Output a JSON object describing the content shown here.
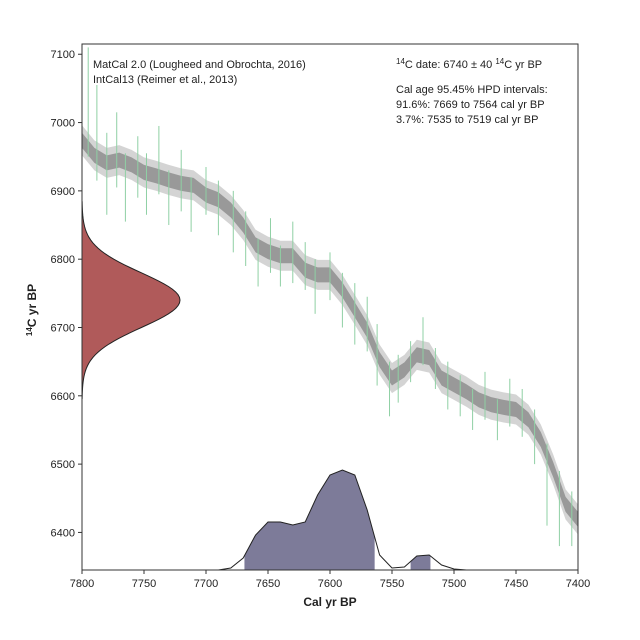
{
  "chart_data": {
    "type": "calibration",
    "xlabel": "Cal yr BP",
    "ylabel": {
      "sup": "14",
      "text": "C yr BP"
    },
    "xlim": [
      7800,
      7400
    ],
    "ylim": [
      6345,
      7115
    ],
    "xticks": [
      7800,
      7750,
      7700,
      7650,
      7600,
      7550,
      7500,
      7450,
      7400
    ],
    "yticks": [
      6400,
      6500,
      6600,
      6700,
      6800,
      6900,
      7000,
      7100
    ],
    "legend_lines": [
      "MatCal 2.0 (Lougheed and Obrochta, 2016)",
      "IntCal13 (Reimer et al., 2013)"
    ],
    "date_label": [
      "14",
      "C date: 6740 ± 40 ",
      "14",
      "C yr BP"
    ],
    "hpd_title": "Cal age 95.45% HPD intervals:",
    "hpd_lines": [
      "91.6%: 7669 to 7564 cal yr BP",
      "3.7%: 7535 to 7519 cal yr BP"
    ],
    "hpd_intervals": [
      [
        7669,
        7564
      ],
      [
        7535,
        7519
      ]
    ],
    "c14_date": {
      "mean": 6740,
      "error": 40,
      "color": "#b05a5a"
    },
    "curve": {
      "color": "#999999",
      "band_color": "#d4d4d4",
      "sigma": 11,
      "x": [
        7800,
        7790,
        7780,
        7770,
        7760,
        7750,
        7740,
        7730,
        7720,
        7710,
        7700,
        7690,
        7680,
        7670,
        7660,
        7650,
        7640,
        7630,
        7620,
        7610,
        7600,
        7590,
        7580,
        7570,
        7560,
        7550,
        7540,
        7530,
        7520,
        7510,
        7500,
        7490,
        7480,
        7470,
        7460,
        7450,
        7440,
        7430,
        7420,
        7410,
        7400
      ],
      "values": [
        6974,
        6952,
        6941,
        6945,
        6938,
        6927,
        6922,
        6916,
        6911,
        6908,
        6894,
        6887,
        6872,
        6850,
        6821,
        6811,
        6805,
        6805,
        6784,
        6777,
        6777,
        6755,
        6726,
        6696,
        6653,
        6626,
        6638,
        6660,
        6656,
        6626,
        6616,
        6606,
        6594,
        6587,
        6583,
        6580,
        6565,
        6536,
        6492,
        6441,
        6419
      ]
    },
    "measurements": {
      "color": "#8fd0a4",
      "x": [
        7795,
        7788,
        7780,
        7772,
        7765,
        7755,
        7748,
        7738,
        7730,
        7720,
        7712,
        7700,
        7690,
        7678,
        7668,
        7658,
        7648,
        7640,
        7630,
        7620,
        7612,
        7600,
        7590,
        7580,
        7570,
        7562,
        7552,
        7545,
        7535,
        7525,
        7515,
        7505,
        7495,
        7485,
        7475,
        7465,
        7455,
        7445,
        7435,
        7425,
        7415,
        7405
      ],
      "values": [
        7030,
        6985,
        6925,
        6960,
        6905,
        6935,
        6910,
        6945,
        6890,
        6915,
        6880,
        6900,
        6875,
        6855,
        6830,
        6795,
        6820,
        6790,
        6810,
        6790,
        6760,
        6775,
        6740,
        6720,
        6705,
        6660,
        6610,
        6625,
        6650,
        6680,
        6640,
        6615,
        6600,
        6580,
        6600,
        6565,
        6590,
        6575,
        6540,
        6470,
        6435,
        6420
      ],
      "errors": [
        80,
        70,
        60,
        55,
        50,
        45,
        45,
        50,
        40,
        45,
        40,
        35,
        40,
        45,
        40,
        35,
        40,
        30,
        45,
        35,
        40,
        35,
        40,
        45,
        40,
        45,
        40,
        35,
        30,
        35,
        30,
        35,
        30,
        30,
        35,
        30,
        35,
        35,
        40,
        60,
        55,
        40
      ]
    },
    "posterior": {
      "color": "#7d7b99",
      "x": [
        7690,
        7680,
        7670,
        7660,
        7650,
        7640,
        7630,
        7620,
        7610,
        7600,
        7590,
        7580,
        7570,
        7560,
        7550,
        7540,
        7530,
        7520,
        7510,
        7500,
        7490
      ],
      "density": [
        0,
        0.02,
        0.12,
        0.35,
        0.48,
        0.48,
        0.45,
        0.48,
        0.75,
        0.95,
        1,
        0.95,
        0.6,
        0.15,
        0.02,
        0.03,
        0.14,
        0.15,
        0.05,
        0.01,
        0
      ]
    }
  }
}
